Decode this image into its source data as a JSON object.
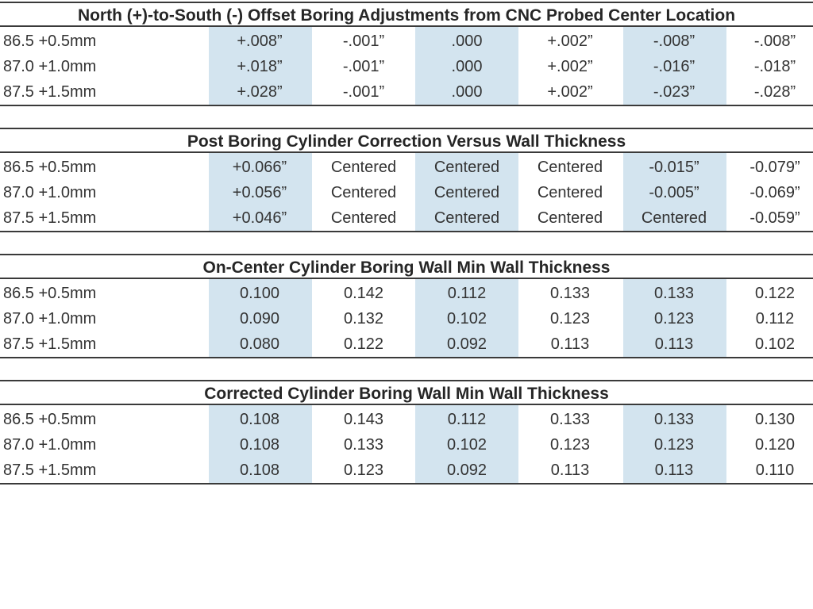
{
  "accent_shade_color": "#d3e4ef",
  "sections": [
    {
      "title": "North (+)-to-South (-) Offset Boring Adjustments from CNC Probed Center Location",
      "rows": [
        {
          "label": "86.5 +0.5mm",
          "values": [
            "+.008”",
            "-.001”",
            ".000",
            "+.002”",
            "-.008”",
            "-.008”"
          ]
        },
        {
          "label": "87.0 +1.0mm",
          "values": [
            "+.018”",
            "-.001”",
            ".000",
            "+.002”",
            "-.016”",
            "-.018”"
          ]
        },
        {
          "label": "87.5 +1.5mm",
          "values": [
            "+.028”",
            "-.001”",
            ".000",
            "+.002”",
            "-.023”",
            "-.028”"
          ]
        }
      ]
    },
    {
      "title": "Post Boring Cylinder Correction Versus Wall Thickness",
      "rows": [
        {
          "label": "86.5 +0.5mm",
          "values": [
            "+0.066”",
            "Centered",
            "Centered",
            "Centered",
            "-0.015”",
            "-0.079”"
          ]
        },
        {
          "label": "87.0 +1.0mm",
          "values": [
            "+0.056”",
            "Centered",
            "Centered",
            "Centered",
            "-0.005”",
            "-0.069”"
          ]
        },
        {
          "label": "87.5 +1.5mm",
          "values": [
            "+0.046”",
            "Centered",
            "Centered",
            "Centered",
            "Centered",
            "-0.059”"
          ]
        }
      ]
    },
    {
      "title": "On-Center Cylinder Boring Wall Min Wall Thickness",
      "rows": [
        {
          "label": "86.5 +0.5mm",
          "values": [
            "0.100",
            "0.142",
            "0.112",
            "0.133",
            "0.133",
            "0.122"
          ]
        },
        {
          "label": "87.0 +1.0mm",
          "values": [
            "0.090",
            "0.132",
            "0.102",
            "0.123",
            "0.123",
            "0.112"
          ]
        },
        {
          "label": "87.5 +1.5mm",
          "values": [
            "0.080",
            "0.122",
            "0.092",
            "0.113",
            "0.113",
            "0.102"
          ]
        }
      ]
    },
    {
      "title": "Corrected Cylinder Boring Wall Min Wall Thickness",
      "rows": [
        {
          "label": "86.5 +0.5mm",
          "values": [
            "0.108",
            "0.143",
            "0.112",
            "0.133",
            "0.133",
            "0.130"
          ]
        },
        {
          "label": "87.0 +1.0mm",
          "values": [
            "0.108",
            "0.133",
            "0.102",
            "0.123",
            "0.123",
            "0.120"
          ]
        },
        {
          "label": "87.5 +1.5mm",
          "values": [
            "0.108",
            "0.123",
            "0.092",
            "0.113",
            "0.113",
            "0.110"
          ]
        }
      ]
    }
  ]
}
